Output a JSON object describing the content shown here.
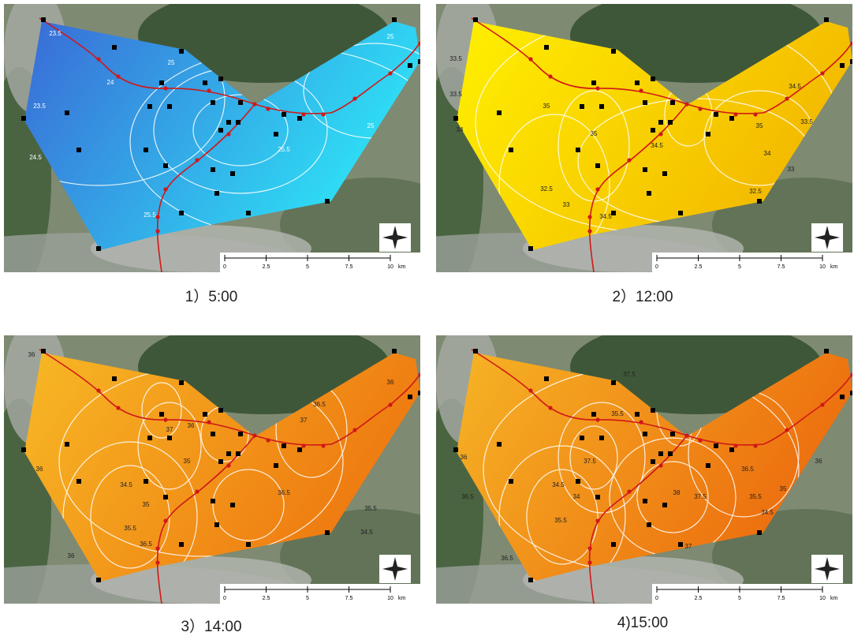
{
  "panels": [
    {
      "caption": "1）5:00",
      "gradient": [
        "#3a6ad6",
        "#2ee2f6"
      ],
      "contour_labels": [
        "23.5",
        "24",
        "23.5",
        "24.5",
        "25",
        "25",
        "25.5",
        "25.5",
        "25"
      ]
    },
    {
      "caption": "2）12:00",
      "gradient": [
        "#fff000",
        "#f3b800"
      ],
      "contour_labels": [
        "33.5",
        "35",
        "33.5",
        "34",
        "35",
        "32.5",
        "33",
        "34.5",
        "34",
        "33",
        "32.5",
        "35",
        "33.5",
        "34.5",
        "34.5"
      ]
    },
    {
      "caption": "3）14:00",
      "gradient": [
        "#f7b825",
        "#ee7810"
      ],
      "contour_labels": [
        "36",
        "36",
        "34.5",
        "35",
        "35.5",
        "36.5",
        "36",
        "37",
        "36",
        "36.5",
        "35.5",
        "34.5",
        "36",
        "37",
        "36.5",
        "35"
      ]
    },
    {
      "caption": "4)15:00",
      "gradient": [
        "#f6b425",
        "#ec6c0e"
      ],
      "contour_labels": [
        "36",
        "36.5",
        "34.5",
        "34",
        "35.5",
        "36.5",
        "37",
        "37.5",
        "38",
        "37.5",
        "36.5",
        "35.5",
        "34.5",
        "35",
        "36",
        "37.5",
        "35.5"
      ]
    }
  ],
  "scale_bar": {
    "ticks": [
      "0",
      "2.5",
      "5",
      "7.5",
      "10"
    ],
    "unit": "km"
  }
}
